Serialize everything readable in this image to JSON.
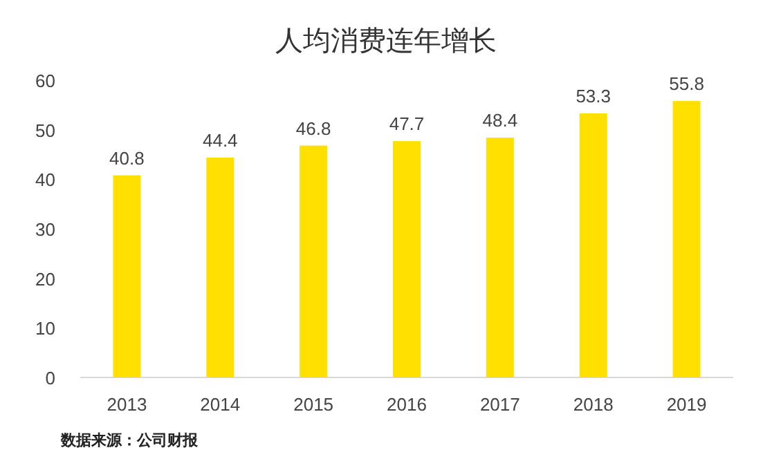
{
  "chart_data": {
    "type": "bar",
    "title": "人均消费连年增长",
    "categories": [
      "2013",
      "2014",
      "2015",
      "2016",
      "2017",
      "2018",
      "2019"
    ],
    "values": [
      40.8,
      44.4,
      46.8,
      47.7,
      48.4,
      53.3,
      55.8
    ],
    "color": "#ffe000",
    "ylim": [
      0,
      60
    ],
    "yticks": [
      0,
      10,
      20,
      30,
      40,
      50,
      60
    ],
    "grid": false,
    "data_labels": true,
    "annotations": [
      "数据来源：公司财报"
    ]
  }
}
